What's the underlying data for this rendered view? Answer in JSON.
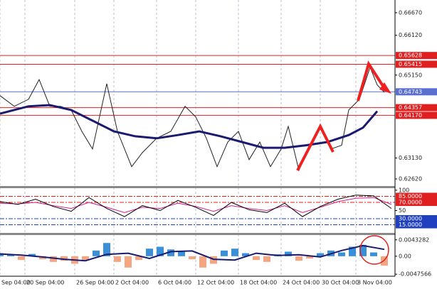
{
  "chart_data": [
    {
      "type": "line",
      "xlim": [
        0,
        111
      ],
      "xticks": [
        {
          "value": 0,
          "label": "Sep 04:00"
        },
        {
          "value": 7,
          "label": "20 Sep 04:00"
        },
        {
          "value": 21,
          "label": "26 Sep 04:00"
        },
        {
          "value": 32,
          "label": "2 Oct 04:00"
        },
        {
          "value": 44,
          "label": "6 Oct 04:00"
        },
        {
          "value": 55,
          "label": "12 Oct 04:00"
        },
        {
          "value": 67,
          "label": "18 Oct 04:00"
        },
        {
          "value": 79,
          "label": "24 Oct 04:00"
        },
        {
          "value": 90,
          "label": "30 Oct 04:00"
        },
        {
          "value": 100,
          "label": "3 Nov 04:00"
        }
      ],
      "ylim": [
        0.62447,
        0.6698
      ],
      "yticks": [
        {
          "value": 0.6667,
          "label": "0.66670"
        },
        {
          "value": 0.6612,
          "label": "0.66120"
        },
        {
          "value": 0.6515,
          "label": "0.65150"
        },
        {
          "value": 0.6313,
          "label": "0.63130"
        },
        {
          "value": 0.6262,
          "label": "0.62620"
        }
      ],
      "levels": [
        {
          "value": 0.65628,
          "color": "#e02020"
        },
        {
          "value": 0.65415,
          "color": "#e02020"
        },
        {
          "value": 0.64743,
          "color": "#5a6fd0"
        },
        {
          "value": 0.64357,
          "color": "#e02020"
        },
        {
          "value": {
            "value": 0.6417,
            "label": "0.64170"
          },
          "color": "#e02020"
        }
      ],
      "series": [
        {
          "color": "#222222",
          "width": 1,
          "x": [
            0,
            4,
            8,
            11,
            14,
            17,
            20,
            23,
            26,
            30,
            33,
            37,
            40,
            44,
            48,
            52,
            55,
            58,
            61,
            64,
            67,
            70,
            73,
            76,
            79,
            81,
            84,
            87,
            90,
            93,
            96,
            98,
            101,
            104,
            106,
            108
          ],
          "values": [
            0.6465,
            0.6439,
            0.6456,
            0.6504,
            0.6439,
            0.6439,
            0.643,
            0.6378,
            0.6335,
            0.6494,
            0.6378,
            0.6292,
            0.6326,
            0.6361,
            0.6378,
            0.6439,
            0.6413,
            0.6361,
            0.6292,
            0.6352,
            0.6378,
            0.6309,
            0.6352,
            0.6292,
            0.6335,
            0.639,
            0.6283,
            0.6344,
            0.639,
            0.6335,
            0.6344,
            0.643,
            0.6456,
            0.6534,
            0.6491,
            0.6473
          ]
        },
        {
          "color": "#1a1a6e",
          "width": 3,
          "x": [
            0,
            8,
            14,
            20,
            26,
            32,
            38,
            44,
            50,
            56,
            62,
            68,
            74,
            80,
            86,
            92,
            98,
            102,
            106
          ],
          "values": [
            0.6421,
            0.6439,
            0.6442,
            0.643,
            0.6404,
            0.6378,
            0.6366,
            0.6361,
            0.6369,
            0.6378,
            0.6366,
            0.6352,
            0.6338,
            0.6338,
            0.6344,
            0.6352,
            0.6369,
            0.6387,
            0.6427
          ]
        }
      ]
    },
    {
      "type": "line",
      "xlim": [
        0,
        111
      ],
      "ylim": [
        -5,
        105
      ],
      "yticks": [
        100,
        50
      ],
      "levels": [
        {
          "value": {
            "value": 85,
            "label": "85.0000"
          },
          "color": "#e02020"
        },
        {
          "value": {
            "value": 70,
            "label": "70.0000"
          },
          "color": "#e02020"
        },
        {
          "value": {
            "value": 30,
            "label": "30.0000"
          },
          "color": "#2040c0"
        },
        {
          "value": {
            "value": 15,
            "label": "15.0000"
          },
          "color": "#2040c0"
        }
      ],
      "series": [
        {
          "color": "#d02090",
          "width": 1,
          "x": [
            0,
            5,
            10,
            15,
            20,
            25,
            30,
            35,
            40,
            45,
            50,
            55,
            60,
            65,
            70,
            75,
            80,
            85,
            90,
            95,
            100,
            105,
            110
          ],
          "values": [
            68,
            66,
            70,
            62,
            55,
            70,
            58,
            45,
            58,
            55,
            68,
            60,
            48,
            62,
            55,
            50,
            62,
            45,
            58,
            72,
            80,
            82,
            65
          ]
        },
        {
          "color": "#000000",
          "width": 1,
          "x": [
            0,
            5,
            10,
            15,
            20,
            25,
            30,
            35,
            40,
            45,
            50,
            55,
            60,
            65,
            70,
            75,
            80,
            85,
            90,
            95,
            100,
            105,
            110
          ],
          "values": [
            72,
            65,
            78,
            60,
            48,
            82,
            55,
            35,
            62,
            50,
            75,
            58,
            38,
            70,
            52,
            45,
            68,
            35,
            60,
            78,
            88,
            86,
            55
          ]
        }
      ]
    },
    {
      "type": "bar",
      "xlim": [
        0,
        111
      ],
      "ylim": [
        -0.0051,
        0.0056
      ],
      "yticks": [
        0.0043282,
        {
          "value": 0,
          "label": "0.00"
        },
        -0.0047566
      ],
      "color_positive": "#3a8fd9",
      "color_negative": "#f4a582",
      "x": [
        0,
        3,
        6,
        9,
        12,
        15,
        18,
        21,
        24,
        27,
        30,
        33,
        36,
        39,
        42,
        45,
        48,
        51,
        54,
        57,
        60,
        63,
        66,
        69,
        72,
        75,
        78,
        81,
        84,
        87,
        90,
        93,
        96,
        99,
        102,
        105,
        108
      ],
      "values": [
        0.0008,
        0.0005,
        -0.001,
        0.0006,
        -0.0008,
        -0.0015,
        -0.0012,
        -0.002,
        -0.001,
        0.0015,
        0.0035,
        -0.0015,
        -0.003,
        -0.001,
        0.002,
        0.0025,
        0.0018,
        0.0012,
        -0.0008,
        -0.003,
        -0.002,
        0.0015,
        0.002,
        0.0008,
        -0.001,
        -0.0015,
        0.0005,
        0.0012,
        -0.0012,
        -0.0006,
        0.0008,
        0.0015,
        0.001,
        0.0025,
        0.003,
        0.001,
        -0.0025
      ],
      "series": [
        {
          "color": "#1a1a6e",
          "width": 2,
          "x": [
            0,
            6,
            12,
            18,
            24,
            30,
            36,
            42,
            48,
            54,
            60,
            66,
            72,
            78,
            84,
            90,
            96,
            102,
            108
          ],
          "values": [
            0.0006,
            0.0003,
            -0.0002,
            -0.0008,
            -0.0012,
            0.0005,
            0.0008,
            -0.0006,
            0.0012,
            0.0014,
            -0.0008,
            -0.001,
            0.0008,
            0.0002,
            0.0004,
            -0.0002,
            0.0015,
            0.0028,
            0.0018
          ]
        }
      ]
    }
  ]
}
